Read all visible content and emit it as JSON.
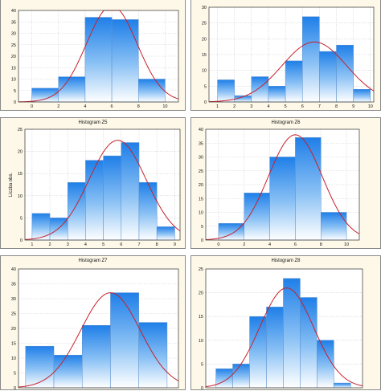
{
  "chart_data": [
    {
      "type": "bar",
      "title": "",
      "ylabel": "",
      "ylim": [
        0,
        40
      ],
      "yticks": [
        "0",
        "5",
        "10",
        "15",
        "20",
        "25",
        "30",
        "35",
        "40"
      ],
      "xlim": [
        -1,
        11
      ],
      "xticks": [
        "0",
        "2",
        "4",
        "6",
        "8",
        "10"
      ],
      "bins": [
        [
          0,
          2
        ],
        [
          2,
          4
        ],
        [
          4,
          6
        ],
        [
          6,
          8
        ],
        [
          8,
          10
        ]
      ],
      "values": [
        6,
        11,
        37,
        36,
        10
      ],
      "normal_curve": {
        "mean": 6,
        "sd": 1.9,
        "peak": 42
      }
    },
    {
      "type": "bar",
      "title": "",
      "ylabel": "",
      "ylim": [
        0,
        30
      ],
      "yticks": [
        "0",
        "5",
        "10",
        "15",
        "20",
        "25",
        "30"
      ],
      "xlim": [
        0.5,
        10.2
      ],
      "xticks": [
        "1",
        "2",
        "3",
        "4",
        "5",
        "6",
        "7",
        "8",
        "9",
        "10"
      ],
      "bins": [
        [
          1,
          2
        ],
        [
          2,
          3
        ],
        [
          3,
          4
        ],
        [
          4,
          5
        ],
        [
          5,
          6
        ],
        [
          6,
          7
        ],
        [
          7,
          8
        ],
        [
          8,
          9
        ],
        [
          9,
          10
        ]
      ],
      "values": [
        7,
        2,
        8,
        5,
        13,
        27,
        16,
        18,
        4
      ],
      "normal_curve": {
        "mean": 6.7,
        "sd": 1.9,
        "peak": 19
      }
    },
    {
      "type": "bar",
      "title": "Histogram Z5",
      "ylabel": "Liczba obs.",
      "ylim": [
        0,
        25
      ],
      "yticks": [
        "0",
        "5",
        "10",
        "15",
        "20",
        "25"
      ],
      "xlim": [
        0.6,
        9.3
      ],
      "xticks": [
        "1",
        "2",
        "3",
        "4",
        "5",
        "6",
        "7",
        "8",
        "9"
      ],
      "bins": [
        [
          1,
          2
        ],
        [
          2,
          3
        ],
        [
          3,
          4
        ],
        [
          4,
          5
        ],
        [
          5,
          6
        ],
        [
          6,
          7
        ],
        [
          7,
          8
        ],
        [
          8,
          9
        ]
      ],
      "values": [
        6,
        5,
        13,
        18,
        19,
        22,
        13,
        3
      ],
      "normal_curve": {
        "mean": 5.8,
        "sd": 1.6,
        "peak": 22.5
      }
    },
    {
      "type": "bar",
      "title": "Histogram Z6",
      "ylabel": "",
      "ylim": [
        0,
        40
      ],
      "yticks": [
        "0",
        "5",
        "10",
        "15",
        "20",
        "25",
        "30",
        "35",
        "40"
      ],
      "xlim": [
        -1,
        11
      ],
      "xticks": [
        "0",
        "2",
        "4",
        "6",
        "8",
        "10"
      ],
      "bins": [
        [
          0,
          2
        ],
        [
          2,
          4
        ],
        [
          4,
          6
        ],
        [
          6,
          8
        ],
        [
          8,
          10
        ]
      ],
      "values": [
        6,
        17,
        30,
        37,
        10
      ],
      "normal_curve": {
        "mean": 6,
        "sd": 2.1,
        "peak": 38
      }
    },
    {
      "type": "bar",
      "title": "Histogram Z7",
      "ylabel": "",
      "ylim": [
        0,
        40
      ],
      "yticks": [
        "0",
        "5",
        "10",
        "15",
        "20",
        "25",
        "30",
        "35",
        "40"
      ],
      "xlim": [
        -0.5,
        10.8
      ],
      "xticks": [],
      "bins": [
        [
          0,
          2
        ],
        [
          2,
          4
        ],
        [
          4,
          6
        ],
        [
          6,
          8
        ],
        [
          8,
          10
        ]
      ],
      "values": [
        14,
        11,
        21,
        32,
        22
      ],
      "normal_curve": {
        "mean": 6,
        "sd": 2.1,
        "peak": 32
      }
    },
    {
      "type": "bar",
      "title": "Histogram Z8",
      "ylabel": "",
      "ylim": [
        0,
        25
      ],
      "yticks": [
        "0",
        "5",
        "10",
        "15",
        "20",
        "25"
      ],
      "xlim": [
        0.4,
        9.7
      ],
      "xticks": [],
      "bins": [
        [
          1,
          2
        ],
        [
          2,
          3
        ],
        [
          3,
          4
        ],
        [
          4,
          5
        ],
        [
          5,
          6
        ],
        [
          6,
          7
        ],
        [
          7,
          8
        ],
        [
          8,
          9
        ]
      ],
      "values": [
        4,
        5,
        15,
        17,
        23,
        19,
        10,
        1
      ],
      "normal_curve": {
        "mean": 5.2,
        "sd": 1.6,
        "peak": 21
      }
    }
  ]
}
